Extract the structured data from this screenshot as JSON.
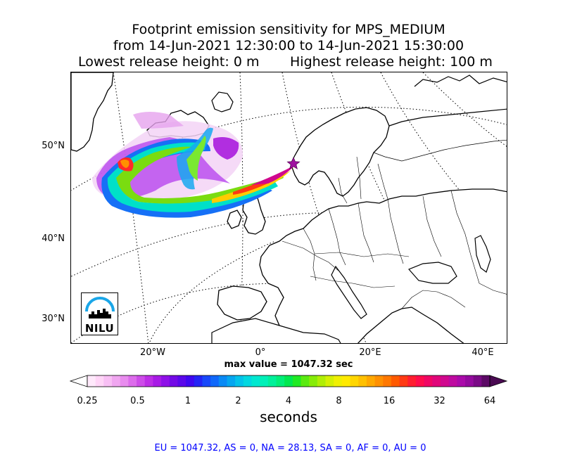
{
  "title": {
    "line1": "Footprint emission sensitivity for MPS_MEDIUM",
    "line2": "from 14-Jun-2021 12:30:00 to 14-Jun-2021 15:30:00",
    "lowest_release": "Lowest release height: 0 m",
    "highest_release": "Highest release height: 100 m"
  },
  "map": {
    "lat_labels": [
      "50°N",
      "40°N",
      "30°N"
    ],
    "lon_labels": [
      "20°W",
      "0°",
      "20°E",
      "40°E"
    ],
    "release_marker": "star-icon",
    "logo_text": "NILU"
  },
  "max_value": "max value = 1047.32 sec",
  "colorbar": {
    "ticks": [
      "0.25",
      "0.5",
      "1",
      "2",
      "4",
      "8",
      "16",
      "32",
      "64"
    ],
    "unit": "seconds",
    "colors": [
      "#ffe9fb",
      "#ffd5f7",
      "#f8bff4",
      "#f0a6f0",
      "#e88cee",
      "#dc6ceb",
      "#cd4ce8",
      "#bd2ee6",
      "#a81ae6",
      "#8f10e8",
      "#730ae6",
      "#5a08ea",
      "#3f08f0",
      "#2424f5",
      "#1848fa",
      "#1068fa",
      "#0a8af5",
      "#06a6f0",
      "#04c2ea",
      "#02d8e0",
      "#00e8d0",
      "#00f0b8",
      "#00f09a",
      "#00ee78",
      "#00e850",
      "#20ea24",
      "#5aea10",
      "#86ec08",
      "#b0ee06",
      "#d4f004",
      "#f0f002",
      "#ffea00",
      "#ffd600",
      "#ffc000",
      "#ffa800",
      "#ff9000",
      "#ff7800",
      "#ff5a00",
      "#ff3a14",
      "#ff1e30",
      "#ff0c4c",
      "#f00664",
      "#e0067a",
      "#d0088e",
      "#be0aa0",
      "#aa0aaa",
      "#940a9e",
      "#7a0a86",
      "#5c0a66"
    ]
  },
  "stats": "EU = 1047.32,  AS = 0,  NA = 28.13,  SA = 0,  AF = 0,  AU = 0"
}
